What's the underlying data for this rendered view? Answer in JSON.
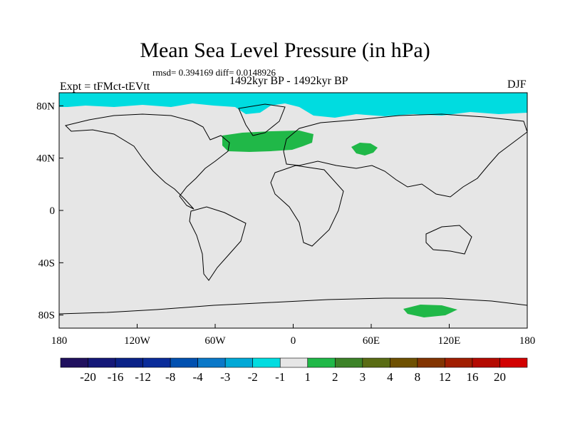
{
  "title": "Mean Sea Level Pressure (in hPa)",
  "stats": "rmsd= 0.394169 diff= 0.0148926",
  "period": "1492kyr BP - 1492kyr BP",
  "experiment": "Expt = tFMct-tEVtt",
  "season": "DJF",
  "x_ticks": [
    "180",
    "120W",
    "60W",
    "0",
    "60E",
    "120E",
    "180"
  ],
  "y_ticks": [
    "80N",
    "40N",
    "0",
    "40S",
    "80S"
  ],
  "colorbar": {
    "labels": [
      "-20",
      "-16",
      "-12",
      "-8",
      "-4",
      "-3",
      "-2",
      "-1",
      "1",
      "2",
      "3",
      "4",
      "8",
      "12",
      "16",
      "20"
    ],
    "colors": [
      "#20105e",
      "#141878",
      "#0a2288",
      "#0a2c9a",
      "#0050b0",
      "#0a78c8",
      "#00a8d6",
      "#00dce0",
      "#e6e6e6",
      "#20b848",
      "#3c8228",
      "#5a6c14",
      "#6e5000",
      "#823400",
      "#a01e00",
      "#b40a00",
      "#d20000"
    ]
  },
  "colors": {
    "land_ocean": "#e6e6e6",
    "positive_anomaly": "#20b848",
    "negative_anomaly": "#00dce0"
  }
}
